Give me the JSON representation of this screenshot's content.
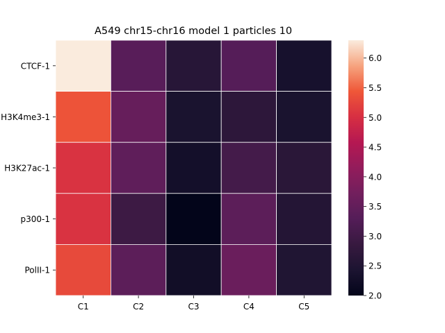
{
  "chart_data": {
    "type": "heatmap",
    "title": "A549 chr15-chr16 model 1 particles 10",
    "xlabel": "",
    "ylabel": "",
    "x_categories": [
      "C1",
      "C2",
      "C3",
      "C4",
      "C5"
    ],
    "y_categories": [
      "CTCF-1",
      "H3K4me3-1",
      "H3K27ac-1",
      "p300-1",
      "PolII-1"
    ],
    "values": [
      [
        6.3,
        3.35,
        2.6,
        3.3,
        2.35
      ],
      [
        5.4,
        3.55,
        2.4,
        2.7,
        2.4
      ],
      [
        5.05,
        3.45,
        2.3,
        3.05,
        2.65
      ],
      [
        5.05,
        2.95,
        2.0,
        3.4,
        2.55
      ],
      [
        5.3,
        3.4,
        2.25,
        3.6,
        2.5
      ]
    ],
    "colorbar": {
      "min": 2.0,
      "max": 6.3,
      "ticks": [
        "2.0",
        "2.5",
        "3.0",
        "3.5",
        "4.0",
        "4.5",
        "5.0",
        "5.5",
        "6.0"
      ],
      "colormap": "rocket"
    },
    "grid": true,
    "cell_border_color": "#ffffff"
  }
}
